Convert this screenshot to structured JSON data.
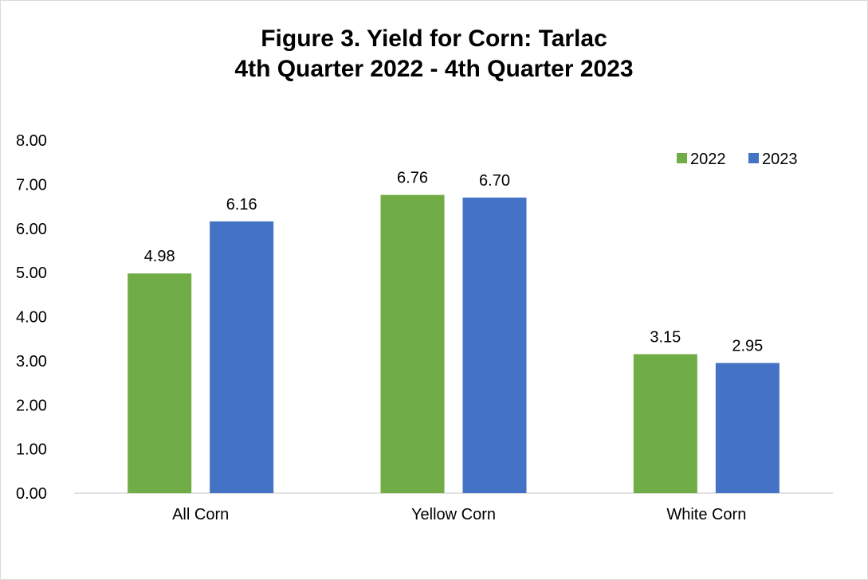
{
  "chart_data": {
    "type": "bar",
    "title_line1": "Figure 3. Yield for Corn: Tarlac",
    "title_line2": "4th Quarter 2022 - 4th Quarter 2023",
    "xlabel": "",
    "ylabel": "",
    "ylim": [
      0,
      8
    ],
    "y_ticks": [
      "0.00",
      "1.00",
      "2.00",
      "3.00",
      "4.00",
      "5.00",
      "6.00",
      "7.00",
      "8.00"
    ],
    "categories": [
      "All Corn",
      "Yellow Corn",
      "White Corn"
    ],
    "series": [
      {
        "name": "2022",
        "color": "#70ad47",
        "values": [
          4.98,
          6.76,
          3.15
        ],
        "labels": [
          "4.98",
          "6.76",
          "3.15"
        ]
      },
      {
        "name": "2023",
        "color": "#4472c4",
        "values": [
          6.16,
          6.7,
          2.95
        ],
        "labels": [
          "6.16",
          "6.70",
          "2.95"
        ]
      }
    ],
    "grid": false,
    "legend_position": "top-right"
  }
}
